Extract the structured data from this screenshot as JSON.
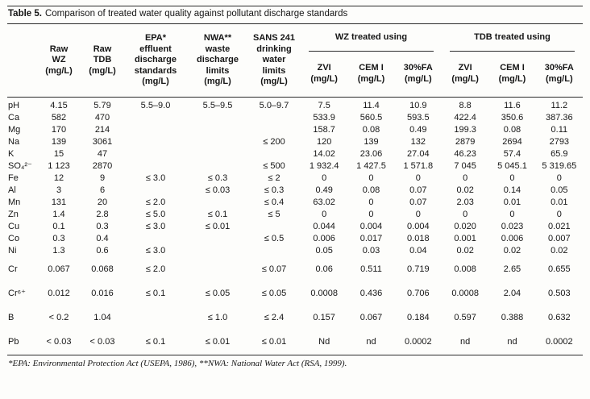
{
  "title": {
    "label": "Table 5.",
    "text": "Comparison of treated water quality against pollutant discharge standards"
  },
  "table": {
    "header": {
      "simple": [
        "Raw\nWZ\n(mg/L)",
        "Raw\nTDB\n(mg/L)",
        "EPA*\neffluent\ndischarge\nstandards\n(mg/L)",
        "NWA**\nwaste\ndischarge\nlimits\n(mg/L)",
        "SANS 241\ndrinking\nwater\nlimits\n(mg/L)"
      ],
      "groups": [
        {
          "label": "WZ treated using",
          "subcols": [
            "ZVI\n(mg/L)",
            "CEM I\n(mg/L)",
            "30%FA\n(mg/L)"
          ]
        },
        {
          "label": "TDB treated using",
          "subcols": [
            "ZVI\n(mg/L)",
            "CEM I\n(mg/L)",
            "30%FA\n(mg/L)"
          ]
        }
      ]
    },
    "rows": [
      {
        "label": "pH",
        "gap": false,
        "values": [
          "4.15",
          "5.79",
          "5.5–9.0",
          "5.5–9.5",
          "5.0–9.7",
          "7.5",
          "11.4",
          "10.9",
          "8.8",
          "11.6",
          "11.2"
        ]
      },
      {
        "label": "Ca",
        "gap": false,
        "values": [
          "582",
          "470",
          "",
          "",
          "",
          "533.9",
          "560.5",
          "593.5",
          "422.4",
          "350.6",
          "387.36"
        ]
      },
      {
        "label": "Mg",
        "gap": false,
        "values": [
          "170",
          "214",
          "",
          "",
          "",
          "158.7",
          "0.08",
          "0.49",
          "199.3",
          "0.08",
          "0.11"
        ]
      },
      {
        "label": "Na",
        "gap": false,
        "values": [
          "139",
          "3061",
          "",
          "",
          "≤ 200",
          "120",
          "139",
          "132",
          "2879",
          "2694",
          "2793"
        ]
      },
      {
        "label": "K",
        "gap": false,
        "values": [
          "15",
          "47",
          "",
          "",
          "",
          "14.02",
          "23.06",
          "27.04",
          "46.23",
          "57.4",
          "65.9"
        ]
      },
      {
        "label": "SO₄²⁻",
        "gap": false,
        "values": [
          "1 123",
          "2870",
          "",
          "",
          "≤ 500",
          "1 932.4",
          "1 427.5",
          "1 571.8",
          "7 045",
          "5 045.1",
          "5 319.65"
        ]
      },
      {
        "label": "Fe",
        "gap": false,
        "values": [
          "12",
          "9",
          "≤ 3.0",
          "≤ 0.3",
          "≤ 2",
          "0",
          "0",
          "0",
          "0",
          "0",
          "0"
        ]
      },
      {
        "label": "Al",
        "gap": false,
        "values": [
          "3",
          "6",
          "",
          "≤ 0.03",
          "≤ 0.3",
          "0.49",
          "0.08",
          "0.07",
          "0.02",
          "0.14",
          "0.05"
        ]
      },
      {
        "label": "Mn",
        "gap": false,
        "values": [
          "131",
          "20",
          "≤ 2.0",
          "",
          "≤ 0.4",
          "63.02",
          "0",
          "0.07",
          "2.03",
          "0.01",
          "0.01"
        ]
      },
      {
        "label": "Zn",
        "gap": false,
        "values": [
          "1.4",
          "2.8",
          "≤ 5.0",
          "≤ 0.1",
          "≤ 5",
          "0",
          "0",
          "0",
          "0",
          "0",
          "0"
        ]
      },
      {
        "label": "Cu",
        "gap": false,
        "values": [
          "0.1",
          "0.3",
          "≤ 3.0",
          "≤ 0.01",
          "",
          "0.044",
          "0.004",
          "0.004",
          "0.020",
          "0.023",
          "0.021"
        ]
      },
      {
        "label": "Co",
        "gap": false,
        "values": [
          "0.3",
          "0.4",
          "",
          "",
          "≤ 0.5",
          "0.006",
          "0.017",
          "0.018",
          "0.001",
          "0.006",
          "0.007"
        ]
      },
      {
        "label": "Ni",
        "gap": false,
        "values": [
          "1.3",
          "0.6",
          "≤ 3.0",
          "",
          "",
          "0.05",
          "0.03",
          "0.04",
          "0.02",
          "0.02",
          "0.02"
        ]
      },
      {
        "label": "Cr",
        "gap": true,
        "values": [
          "0.067",
          "0.068",
          "≤ 2.0",
          "",
          "≤ 0.07",
          "0.06",
          "0.511",
          "0.719",
          "0.008",
          "2.65",
          "0.655"
        ]
      },
      {
        "label": "Cr⁶⁺",
        "gap": true,
        "values": [
          "0.012",
          "0.016",
          "≤ 0.1",
          "≤ 0.05",
          "≤ 0.05",
          "0.0008",
          "0.436",
          "0.706",
          "0.0008",
          "2.04",
          "0.503"
        ]
      },
      {
        "label": "B",
        "gap": true,
        "values": [
          "< 0.2",
          "1.04",
          "",
          "≤ 1.0",
          "≤ 2.4",
          "0.157",
          "0.067",
          "0.184",
          "0.597",
          "0.388",
          "0.632"
        ]
      },
      {
        "label": "Pb",
        "gap": true,
        "values": [
          "< 0.03",
          "< 0.03",
          "≤ 0.1",
          "≤ 0.01",
          "≤ 0.01",
          "Nd",
          "nd",
          "0.0002",
          "nd",
          "nd",
          "0.0002"
        ]
      }
    ]
  },
  "footnote": "*EPA: Environmental Protection Act (USEPA, 1986), **NWA: National Water Act (RSA, 1999)."
}
